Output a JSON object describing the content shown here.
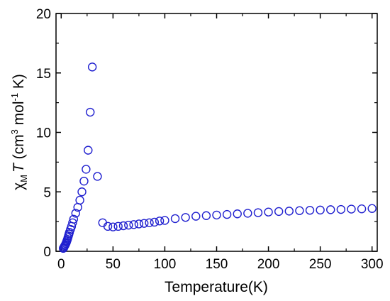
{
  "chart_data": {
    "type": "scatter",
    "xlabel": "Temperature(K)",
    "ylabel_parts": {
      "chi": "χ",
      "chi_sub": "M",
      "T": "T",
      "open": " (cm",
      "exp3": "3",
      "mol": " mol",
      "exp_neg1": "-1",
      "close": " K)"
    },
    "xlim": [
      -5,
      305
    ],
    "ylim": [
      0,
      20
    ],
    "xticks": [
      0,
      50,
      100,
      150,
      200,
      250,
      300
    ],
    "yticks": [
      0,
      5,
      10,
      15,
      20
    ],
    "marker": "open-circle",
    "marker_color": "#1f1fcf",
    "grid": false,
    "legend": "none",
    "x": [
      2,
      2.5,
      3,
      3.5,
      4,
      4.5,
      5,
      5.5,
      6,
      6.5,
      7,
      7.5,
      8,
      9,
      10,
      11,
      12,
      14,
      16,
      18,
      20,
      22,
      24,
      26,
      28,
      30,
      35,
      40,
      45,
      50,
      55,
      60,
      65,
      70,
      75,
      80,
      85,
      90,
      95,
      100,
      110,
      120,
      130,
      140,
      150,
      160,
      170,
      180,
      190,
      200,
      210,
      220,
      230,
      240,
      250,
      260,
      270,
      280,
      290,
      300
    ],
    "y": [
      0.25,
      0.3,
      0.4,
      0.48,
      0.55,
      0.65,
      0.75,
      0.88,
      1.0,
      1.15,
      1.3,
      1.45,
      1.6,
      1.85,
      2.1,
      2.4,
      2.7,
      3.2,
      3.7,
      4.3,
      5.0,
      5.9,
      6.9,
      8.5,
      11.7,
      15.5,
      6.3,
      2.4,
      2.1,
      2.05,
      2.1,
      2.15,
      2.2,
      2.25,
      2.3,
      2.35,
      2.4,
      2.45,
      2.55,
      2.6,
      2.75,
      2.85,
      2.95,
      3.0,
      3.05,
      3.1,
      3.15,
      3.2,
      3.25,
      3.3,
      3.35,
      3.38,
      3.42,
      3.45,
      3.47,
      3.5,
      3.52,
      3.55,
      3.57,
      3.6
    ]
  }
}
